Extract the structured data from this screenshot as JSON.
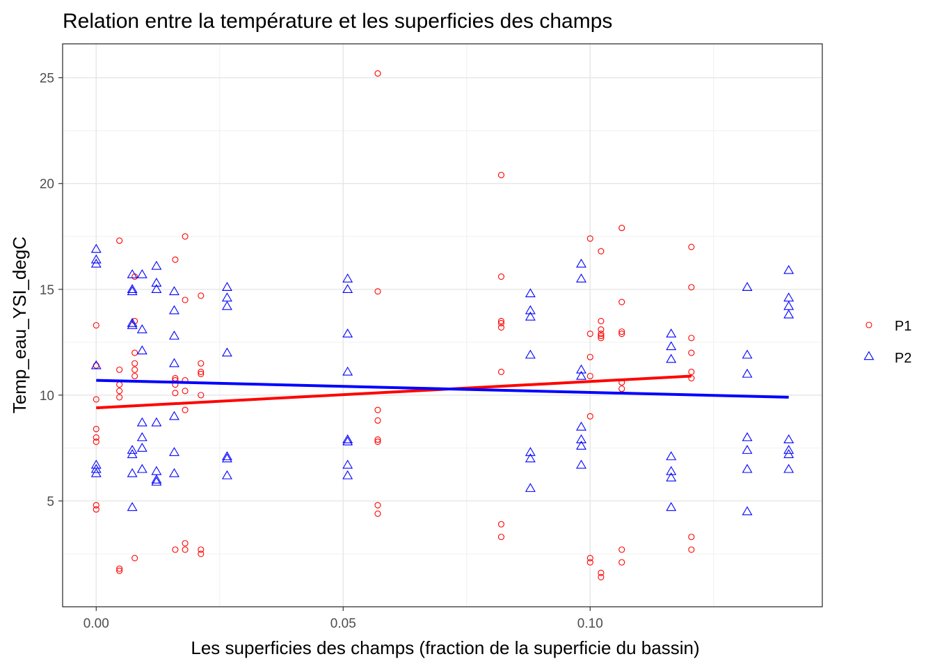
{
  "chart_data": {
    "type": "scatter",
    "title": "Relation entre la température et les superficies des champs",
    "xlabel": "Les superficies des champs (fraction de la superficie du bassin)",
    "ylabel": "Temp_eau_YSI_degC",
    "xlim": [
      -0.0068,
      0.147
    ],
    "ylim": [
      0.0,
      26.6
    ],
    "x_ticks": [
      0.0,
      0.05,
      0.1
    ],
    "x_tick_labels": [
      "0.00",
      "0.05",
      "0.10"
    ],
    "y_ticks": [
      5,
      10,
      15,
      20,
      25
    ],
    "y_tick_labels": [
      "5",
      "10",
      "15",
      "20",
      "25"
    ],
    "grid": true,
    "legend_position": "right",
    "series": [
      {
        "name": "P1",
        "color": "#ff0000",
        "marker": "circle",
        "points": [
          [
            0.0,
            13.3
          ],
          [
            0.0,
            11.4
          ],
          [
            0.0,
            9.8
          ],
          [
            0.0,
            8.4
          ],
          [
            0.0,
            8.0
          ],
          [
            0.0,
            7.8
          ],
          [
            0.0,
            4.8
          ],
          [
            0.0,
            4.6
          ],
          [
            0.0047,
            17.3
          ],
          [
            0.0047,
            11.2
          ],
          [
            0.0047,
            10.5
          ],
          [
            0.0047,
            10.2
          ],
          [
            0.0047,
            9.9
          ],
          [
            0.0047,
            1.8
          ],
          [
            0.0047,
            1.7
          ],
          [
            0.0078,
            15.6
          ],
          [
            0.0078,
            13.5
          ],
          [
            0.0078,
            12.0
          ],
          [
            0.0078,
            11.5
          ],
          [
            0.0078,
            11.2
          ],
          [
            0.0078,
            10.9
          ],
          [
            0.0078,
            2.3
          ],
          [
            0.016,
            16.4
          ],
          [
            0.016,
            10.8
          ],
          [
            0.016,
            10.7
          ],
          [
            0.016,
            10.5
          ],
          [
            0.016,
            10.1
          ],
          [
            0.016,
            2.7
          ],
          [
            0.018,
            17.5
          ],
          [
            0.018,
            14.5
          ],
          [
            0.018,
            10.7
          ],
          [
            0.018,
            10.2
          ],
          [
            0.018,
            9.3
          ],
          [
            0.018,
            3.0
          ],
          [
            0.018,
            2.7
          ],
          [
            0.0212,
            14.7
          ],
          [
            0.0212,
            11.5
          ],
          [
            0.0212,
            11.1
          ],
          [
            0.0212,
            11.0
          ],
          [
            0.0212,
            10.0
          ],
          [
            0.0212,
            2.7
          ],
          [
            0.0212,
            2.5
          ],
          [
            0.057,
            25.2
          ],
          [
            0.057,
            14.9
          ],
          [
            0.057,
            9.3
          ],
          [
            0.057,
            8.8
          ],
          [
            0.057,
            7.9
          ],
          [
            0.057,
            7.8
          ],
          [
            0.057,
            4.8
          ],
          [
            0.057,
            4.4
          ],
          [
            0.082,
            20.4
          ],
          [
            0.082,
            15.6
          ],
          [
            0.082,
            13.5
          ],
          [
            0.082,
            13.4
          ],
          [
            0.082,
            13.2
          ],
          [
            0.082,
            11.1
          ],
          [
            0.082,
            3.9
          ],
          [
            0.082,
            3.3
          ],
          [
            0.1,
            17.4
          ],
          [
            0.1,
            12.9
          ],
          [
            0.1,
            11.8
          ],
          [
            0.1,
            10.9
          ],
          [
            0.1,
            9.0
          ],
          [
            0.1,
            2.3
          ],
          [
            0.1,
            2.1
          ],
          [
            0.1022,
            16.8
          ],
          [
            0.1022,
            13.5
          ],
          [
            0.1022,
            13.1
          ],
          [
            0.1022,
            12.9
          ],
          [
            0.1022,
            12.8
          ],
          [
            0.1022,
            12.7
          ],
          [
            0.1022,
            1.6
          ],
          [
            0.1022,
            1.4
          ],
          [
            0.1064,
            17.9
          ],
          [
            0.1064,
            14.4
          ],
          [
            0.1064,
            13.0
          ],
          [
            0.1064,
            12.9
          ],
          [
            0.1064,
            10.6
          ],
          [
            0.1064,
            10.3
          ],
          [
            0.1064,
            2.7
          ],
          [
            0.1064,
            2.1
          ],
          [
            0.1205,
            17.0
          ],
          [
            0.1205,
            15.1
          ],
          [
            0.1205,
            12.7
          ],
          [
            0.1205,
            12.0
          ],
          [
            0.1205,
            11.1
          ],
          [
            0.1205,
            10.8
          ],
          [
            0.1205,
            3.3
          ],
          [
            0.1205,
            2.7
          ]
        ],
        "fit": {
          "x": [
            0.0,
            0.1205
          ],
          "y": [
            9.4,
            10.9
          ]
        }
      },
      {
        "name": "P2",
        "color": "#0000ff",
        "marker": "triangle",
        "points": [
          [
            0.0,
            16.9
          ],
          [
            0.0,
            16.4
          ],
          [
            0.0,
            16.2
          ],
          [
            0.0,
            11.4
          ],
          [
            0.0,
            6.7
          ],
          [
            0.0,
            6.5
          ],
          [
            0.0,
            6.3
          ],
          [
            0.0073,
            15.7
          ],
          [
            0.0073,
            15.0
          ],
          [
            0.0073,
            14.9
          ],
          [
            0.0073,
            13.4
          ],
          [
            0.0073,
            13.3
          ],
          [
            0.0073,
            7.4
          ],
          [
            0.0073,
            7.2
          ],
          [
            0.0073,
            6.3
          ],
          [
            0.0073,
            4.7
          ],
          [
            0.0093,
            15.7
          ],
          [
            0.0093,
            13.1
          ],
          [
            0.0093,
            12.1
          ],
          [
            0.0093,
            8.7
          ],
          [
            0.0093,
            8.0
          ],
          [
            0.0093,
            7.5
          ],
          [
            0.0093,
            6.5
          ],
          [
            0.0122,
            16.1
          ],
          [
            0.0122,
            15.3
          ],
          [
            0.0122,
            15.0
          ],
          [
            0.0122,
            8.7
          ],
          [
            0.0122,
            6.4
          ],
          [
            0.0122,
            6.0
          ],
          [
            0.0122,
            5.9
          ],
          [
            0.0158,
            14.9
          ],
          [
            0.0158,
            14.0
          ],
          [
            0.0158,
            12.8
          ],
          [
            0.0158,
            11.5
          ],
          [
            0.0158,
            9.0
          ],
          [
            0.0158,
            7.3
          ],
          [
            0.0158,
            6.3
          ],
          [
            0.0265,
            15.1
          ],
          [
            0.0265,
            14.6
          ],
          [
            0.0265,
            14.2
          ],
          [
            0.0265,
            12.0
          ],
          [
            0.0265,
            7.1
          ],
          [
            0.0265,
            7.0
          ],
          [
            0.0265,
            6.2
          ],
          [
            0.0509,
            15.5
          ],
          [
            0.0509,
            15.0
          ],
          [
            0.0509,
            12.9
          ],
          [
            0.0509,
            11.1
          ],
          [
            0.0509,
            7.9
          ],
          [
            0.0509,
            7.8
          ],
          [
            0.0509,
            6.7
          ],
          [
            0.0509,
            6.2
          ],
          [
            0.0879,
            14.8
          ],
          [
            0.0879,
            14.0
          ],
          [
            0.0879,
            13.7
          ],
          [
            0.0879,
            11.9
          ],
          [
            0.0879,
            7.3
          ],
          [
            0.0879,
            7.0
          ],
          [
            0.0879,
            5.6
          ],
          [
            0.0982,
            16.2
          ],
          [
            0.0982,
            15.5
          ],
          [
            0.0982,
            11.2
          ],
          [
            0.0982,
            10.9
          ],
          [
            0.0982,
            8.5
          ],
          [
            0.0982,
            7.9
          ],
          [
            0.0982,
            7.6
          ],
          [
            0.0982,
            6.7
          ],
          [
            0.1164,
            12.9
          ],
          [
            0.1164,
            12.3
          ],
          [
            0.1164,
            11.7
          ],
          [
            0.1164,
            7.1
          ],
          [
            0.1164,
            6.4
          ],
          [
            0.1164,
            6.1
          ],
          [
            0.1164,
            4.7
          ],
          [
            0.1318,
            15.1
          ],
          [
            0.1318,
            11.9
          ],
          [
            0.1318,
            11.0
          ],
          [
            0.1318,
            8.0
          ],
          [
            0.1318,
            7.4
          ],
          [
            0.1318,
            6.5
          ],
          [
            0.1318,
            4.5
          ],
          [
            0.1402,
            15.9
          ],
          [
            0.1402,
            14.6
          ],
          [
            0.1402,
            14.2
          ],
          [
            0.1402,
            13.8
          ],
          [
            0.1402,
            7.9
          ],
          [
            0.1402,
            7.4
          ],
          [
            0.1402,
            7.2
          ],
          [
            0.1402,
            6.5
          ]
        ],
        "fit": {
          "x": [
            0.0,
            0.1402
          ],
          "y": [
            10.7,
            9.9
          ]
        }
      }
    ]
  }
}
